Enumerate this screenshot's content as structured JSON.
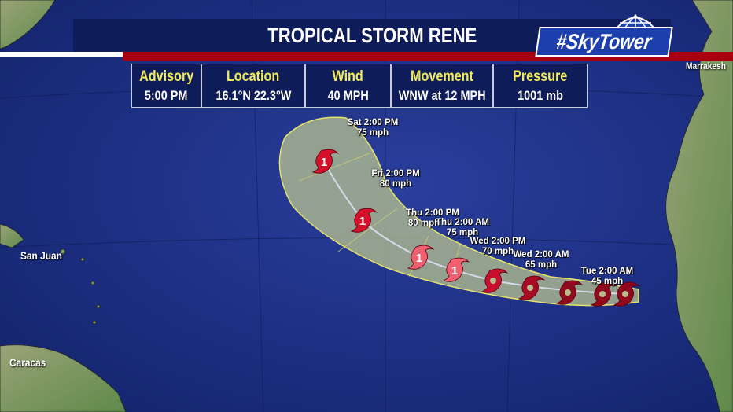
{
  "header": {
    "title": "TROPICAL STORM RENE",
    "logo": "#SkyTower"
  },
  "advisory": [
    {
      "label": "Advisory",
      "value": "5:00 PM"
    },
    {
      "label": "Location",
      "value": "16.1°N  22.3°W"
    },
    {
      "label": "Wind",
      "value": "40 MPH"
    },
    {
      "label": "Movement",
      "value": "WNW at 12 MPH"
    },
    {
      "label": "Pressure",
      "value": "1001 mb"
    }
  ],
  "forecast_points": [
    {
      "time": "Sat 2:00 PM",
      "wind": "75 mph",
      "category": "1"
    },
    {
      "time": "Fri 2:00 PM",
      "wind": "80 mph",
      "category": "1"
    },
    {
      "time": "Thu 2:00 PM",
      "wind": "80 mph",
      "category": "1"
    },
    {
      "time": "Thu 2:00 AM",
      "wind": "75 mph",
      "category": "1"
    },
    {
      "time": "Wed 2:00 PM",
      "wind": "70 mph",
      "category": ""
    },
    {
      "time": "Wed 2:00 AM",
      "wind": "65 mph",
      "category": ""
    },
    {
      "time": "Tue 2:00 AM",
      "wind": "45 mph",
      "category": ""
    }
  ],
  "cities": [
    "San Juan",
    "Caracas",
    "Marrakesh"
  ],
  "colors": {
    "ocean": "#1b2e86",
    "cone": "#a9b58a",
    "hurricane": "#c8102e",
    "banner": "#0e1c5a",
    "accent_red": "#a8000f",
    "header_text": "#f3ea5a"
  }
}
